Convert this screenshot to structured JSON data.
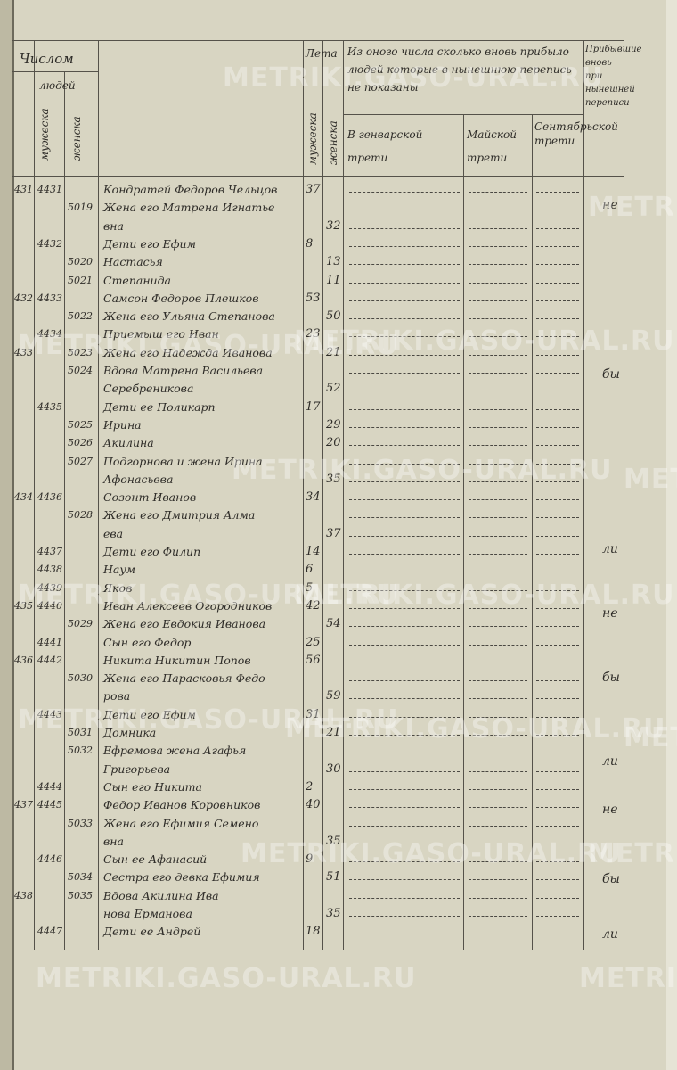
{
  "header": {
    "count": "Числом",
    "people": "людей",
    "male": "мужеска",
    "female": "женска",
    "age": "Лета",
    "age_male": "мужеска",
    "age_female": "женска",
    "absent": "Из оного числа сколько вновь прибыло людей которые в нынешнюю перепись не показаны",
    "january": "В генварской трети",
    "may": "Майской трети",
    "september": "Сентябрьской трети",
    "arrived": "Прибывшие вновь при нынешней переписи"
  },
  "rows": [
    {
      "margin": "431",
      "male_no": "4431",
      "name": [
        "Кондратей Федоров Чельцов"
      ],
      "age_male": 37
    },
    {
      "female_no": "5019",
      "name": [
        "Жена его Матрена Игнатье",
        "вна"
      ],
      "age_female": 32
    },
    {
      "male_no": "4432",
      "name": [
        "Дети его Ефим"
      ],
      "age_male": 8
    },
    {
      "female_no": "5020",
      "name": [
        "Настасья"
      ],
      "age_female": 13
    },
    {
      "female_no": "5021",
      "name": [
        "Степанида"
      ],
      "age_female": 11
    },
    {
      "margin": "432",
      "male_no": "4433",
      "name": [
        "Самсон Федоров Плешков"
      ],
      "age_male": 53
    },
    {
      "female_no": "5022",
      "name": [
        "Жена его Ульяна Степанова"
      ],
      "age_female": 50
    },
    {
      "male_no": "4434",
      "name": [
        "Приемыш его Иван"
      ],
      "age_male": 23
    },
    {
      "margin": "433",
      "female_no": "5023",
      "name": [
        "Жена его Надежда Иванова"
      ],
      "age_female": 21
    },
    {
      "female_no": "5024",
      "name": [
        "Вдова Матрена Васильева",
        "Серебреникова"
      ],
      "age_female": 52
    },
    {
      "male_no": "4435",
      "name": [
        "Дети ее Поликарп"
      ],
      "age_male": 17
    },
    {
      "female_no": "5025",
      "name": [
        "Ирина"
      ],
      "age_female": 29
    },
    {
      "female_no": "5026",
      "name": [
        "Акилина"
      ],
      "age_female": 20
    },
    {
      "female_no": "5027",
      "name": [
        "Подгорнова и жена Ирина",
        "Афонасьева"
      ],
      "age_female": 35
    },
    {
      "margin": "434",
      "male_no": "4436",
      "name": [
        "Созонт Иванов"
      ],
      "age_male": 34
    },
    {
      "female_no": "5028",
      "name": [
        "Жена его Дмитрия Алма",
        "ева"
      ],
      "age_female": 37
    },
    {
      "male_no": "4437",
      "name": [
        "Дети его Филип"
      ],
      "age_male": 14
    },
    {
      "male_no": "4438",
      "name": [
        "Наум"
      ],
      "age_male": 6
    },
    {
      "male_no": "4439",
      "name": [
        "Яков"
      ],
      "age_male": 5
    },
    {
      "margin": "435",
      "male_no": "4440",
      "name": [
        "Иван Алексеев Огородников"
      ],
      "age_male": 42
    },
    {
      "female_no": "5029",
      "name": [
        "Жена его Евдокия Иванова"
      ],
      "age_female": 54
    },
    {
      "male_no": "4441",
      "name": [
        "Сын его Федор"
      ],
      "age_male": 25
    },
    {
      "margin": "436",
      "male_no": "4442",
      "name": [
        "Никита Никитин Попов"
      ],
      "age_male": 56
    },
    {
      "female_no": "5030",
      "name": [
        "Жена его Парасковья Федо",
        "рова"
      ],
      "age_female": 59
    },
    {
      "male_no": "4443",
      "name": [
        "Дети его Ефим"
      ],
      "age_male": 31
    },
    {
      "female_no": "5031",
      "name": [
        "Домника"
      ],
      "age_female": 21
    },
    {
      "female_no": "5032",
      "name": [
        "Ефремова жена Агафья",
        "Григорьева"
      ],
      "age_female": 30
    },
    {
      "male_no": "4444",
      "name": [
        "Сын его Никита"
      ],
      "age_male": 2
    },
    {
      "margin": "437",
      "male_no": "4445",
      "name": [
        "Федор Иванов Коровников"
      ],
      "age_male": 40
    },
    {
      "female_no": "5033",
      "name": [
        "Жена его Ефимия Семено",
        "вна"
      ],
      "age_female": 35
    },
    {
      "male_no": "4446",
      "name": [
        "Сын ее Афанасий"
      ],
      "age_male": 9
    },
    {
      "female_no": "5034",
      "name": [
        "Сестра его девка Ефимия"
      ],
      "age_female": 51
    },
    {
      "margin": "438",
      "female_no": "5035",
      "name": [
        "Вдова Акилина Ива",
        "нова Ерманова"
      ],
      "age_female": 35
    },
    {
      "male_no": "4447",
      "name": [
        "Дети ее Андрей"
      ],
      "age_male": 18
    }
  ],
  "notes": [
    "не",
    "бы",
    "ли",
    "не",
    "бы",
    "ли",
    "не",
    "бы",
    "ли"
  ],
  "watermark": "METRIKI.GASO-URAL.RU"
}
